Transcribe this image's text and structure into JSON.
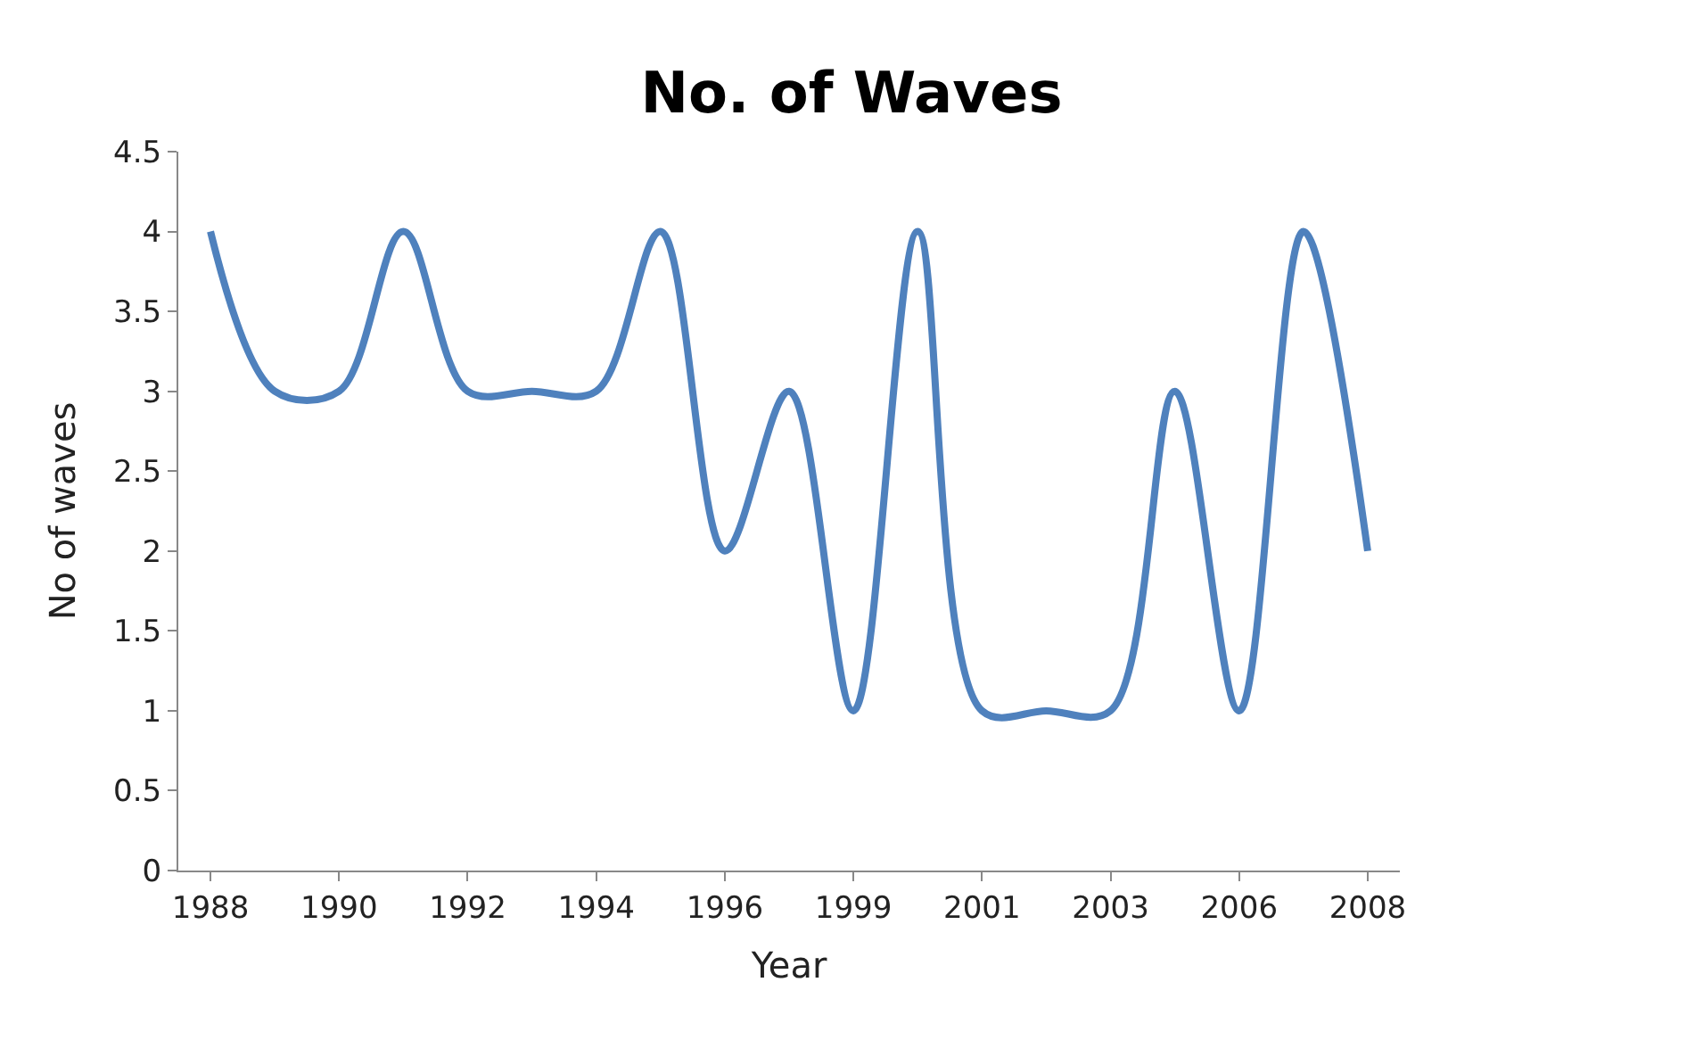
{
  "chart_data": {
    "type": "line",
    "title": "No. of Waves",
    "xlabel": "Year",
    "ylabel": "No of waves",
    "categories": [
      "1988",
      null,
      "1990",
      null,
      "1992",
      null,
      "1994",
      null,
      "1996",
      null,
      "1999",
      null,
      "2001",
      null,
      "2003",
      null,
      "2006",
      null,
      "2008"
    ],
    "series": [
      {
        "color": "#4f81bd",
        "values": [
          4,
          3,
          3,
          4,
          3,
          3,
          3,
          4,
          2,
          3,
          1,
          4,
          1,
          1,
          1,
          3,
          1,
          4,
          2
        ]
      }
    ],
    "ylim": [
      0,
      4.5
    ],
    "yticks": [
      0,
      0.5,
      1,
      1.5,
      2,
      2.5,
      3,
      3.5,
      4,
      4.5
    ],
    "marker": "none",
    "line_style": "solid"
  }
}
